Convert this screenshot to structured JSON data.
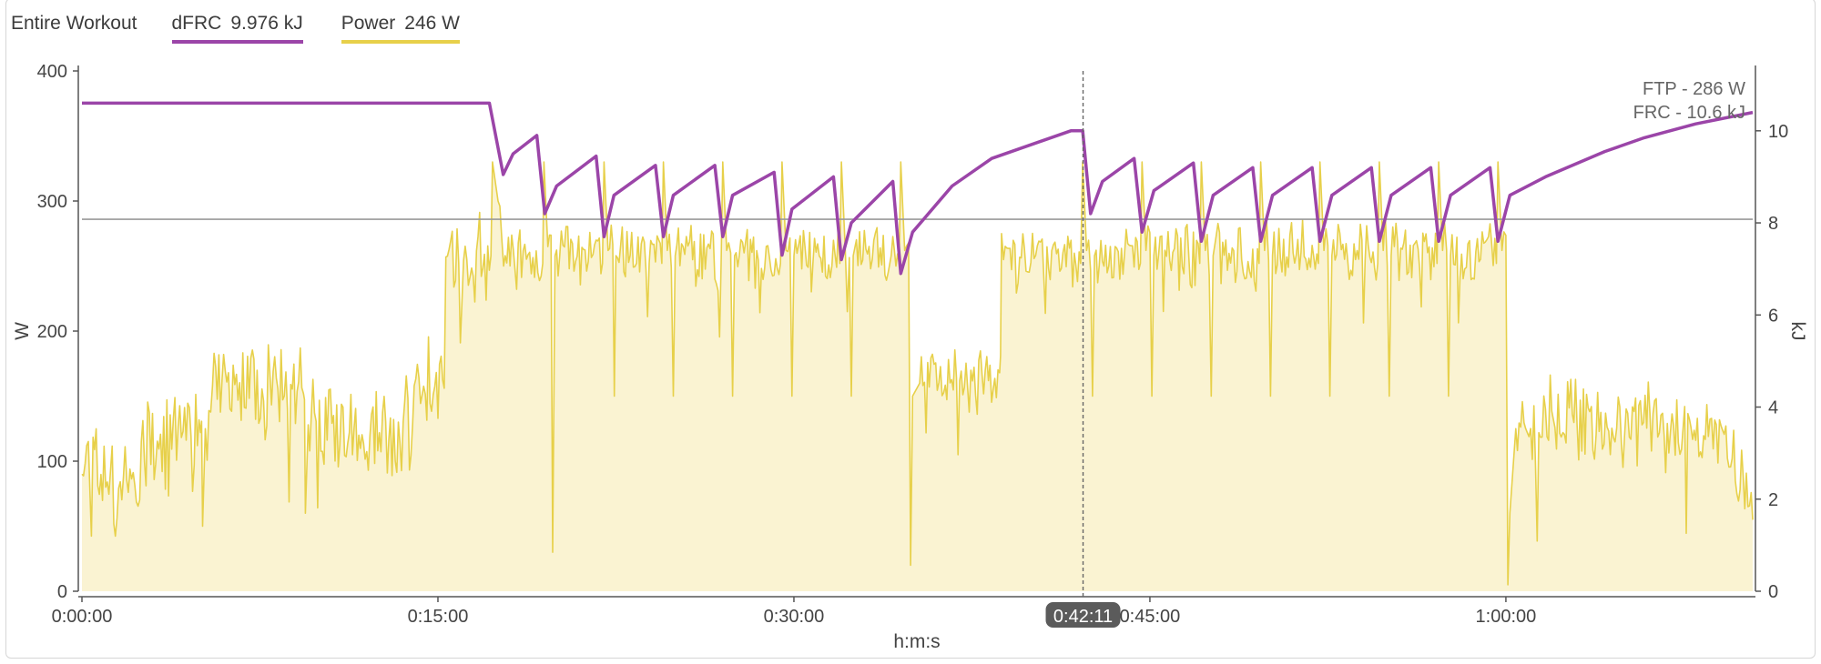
{
  "legend": {
    "scope_label": "Entire Workout",
    "items": [
      {
        "name": "dFRC",
        "value": "9.976 kJ",
        "color": "#9b45a8"
      },
      {
        "name": "Power",
        "value": "246 W",
        "color": "#e7d04a"
      }
    ]
  },
  "chart_data": {
    "type": "area",
    "xlabel": "h:m:s",
    "ylabel_left": "W",
    "ylabel_right": "kJ",
    "x_unit": "seconds",
    "xlim": [
      0,
      4224
    ],
    "ylim_left": [
      0,
      400
    ],
    "ylim_right": [
      0,
      11.3
    ],
    "x_ticks": [
      0,
      900,
      1800,
      2700,
      3600
    ],
    "x_tick_labels": [
      "0:00:00",
      "0:15:00",
      "0:30:00",
      "0:45:00",
      "1:00:00"
    ],
    "y_ticks_left": [
      0,
      100,
      200,
      300,
      400
    ],
    "y_ticks_right": [
      0,
      2,
      4,
      6,
      8,
      10
    ],
    "reference_lines": [
      {
        "label": "FTP - 286 W",
        "value": 286,
        "axis": "left"
      }
    ],
    "annotations": [
      "FTP - 286 W",
      "FRC - 10.6 kJ"
    ],
    "cursor": {
      "x": 2531,
      "label": "0:42:11"
    },
    "grid": false,
    "series": [
      {
        "name": "Power",
        "axis": "left",
        "color": "#e7d04a",
        "fill": "#faf3d2",
        "segments": [
          [
            0,
            90,
            70,
            0
          ],
          [
            60,
            80,
            65,
            7
          ],
          [
            150,
            115,
            70,
            12
          ],
          [
            300,
            122,
            55,
            18
          ],
          [
            305,
            50,
            0,
            0
          ],
          [
            312,
            125,
            48,
            15
          ],
          [
            330,
            158,
            62,
            17
          ],
          [
            560,
            152,
            52,
            19
          ],
          [
            565,
            60,
            0,
            0
          ],
          [
            572,
            128,
            60,
            20
          ],
          [
            700,
            120,
            62,
            25
          ],
          [
            800,
            130,
            66,
            31
          ],
          [
            840,
            158,
            62,
            37
          ],
          [
            920,
            257,
            62,
            43
          ],
          [
            1034,
            258,
            0,
            0
          ],
          [
            1038,
            330,
            0,
            0
          ],
          [
            1052,
            300,
            60,
            49
          ],
          [
            1066,
            250,
            0,
            0
          ],
          [
            1070,
            258,
            40,
            55
          ],
          [
            1165,
            252,
            0,
            0
          ],
          [
            1168,
            330,
            0,
            0
          ],
          [
            1178,
            265,
            48,
            61
          ],
          [
            1190,
            30,
            0,
            0
          ],
          [
            1196,
            258,
            40,
            67
          ],
          [
            1316,
            252,
            0,
            0
          ],
          [
            1320,
            330,
            0,
            0
          ],
          [
            1330,
            262,
            44,
            73
          ],
          [
            1346,
            150,
            0,
            0
          ],
          [
            1350,
            258,
            40,
            79
          ],
          [
            1466,
            252,
            0,
            0
          ],
          [
            1470,
            330,
            0,
            0
          ],
          [
            1480,
            262,
            44,
            85
          ],
          [
            1495,
            150,
            0,
            0
          ],
          [
            1500,
            258,
            40,
            91
          ],
          [
            1616,
            252,
            0,
            0
          ],
          [
            1620,
            330,
            0,
            0
          ],
          [
            1630,
            262,
            44,
            97
          ],
          [
            1645,
            150,
            0,
            0
          ],
          [
            1650,
            258,
            40,
            103
          ],
          [
            1766,
            252,
            0,
            0
          ],
          [
            1770,
            330,
            0,
            0
          ],
          [
            1780,
            262,
            44,
            109
          ],
          [
            1795,
            150,
            0,
            0
          ],
          [
            1800,
            258,
            40,
            115
          ],
          [
            1916,
            252,
            0,
            0
          ],
          [
            1920,
            330,
            0,
            0
          ],
          [
            1930,
            262,
            44,
            121
          ],
          [
            1945,
            150,
            0,
            0
          ],
          [
            1950,
            258,
            40,
            127
          ],
          [
            2066,
            252,
            0,
            0
          ],
          [
            2070,
            330,
            0,
            0
          ],
          [
            2080,
            262,
            44,
            133
          ],
          [
            2095,
            20,
            0,
            0
          ],
          [
            2100,
            150,
            0,
            0
          ],
          [
            2118,
            160,
            50,
            139
          ],
          [
            2320,
            168,
            40,
            145
          ],
          [
            2325,
            275,
            0,
            0
          ],
          [
            2330,
            255,
            40,
            151
          ],
          [
            2525,
            252,
            0,
            0
          ],
          [
            2530,
            330,
            0,
            0
          ],
          [
            2540,
            262,
            44,
            157
          ],
          [
            2555,
            150,
            0,
            0
          ],
          [
            2560,
            258,
            40,
            163
          ],
          [
            2676,
            252,
            0,
            0
          ],
          [
            2680,
            330,
            0,
            0
          ],
          [
            2690,
            262,
            44,
            169
          ],
          [
            2705,
            150,
            0,
            0
          ],
          [
            2710,
            258,
            40,
            175
          ],
          [
            2826,
            252,
            0,
            0
          ],
          [
            2830,
            330,
            0,
            0
          ],
          [
            2840,
            262,
            44,
            181
          ],
          [
            2855,
            150,
            0,
            0
          ],
          [
            2860,
            258,
            40,
            187
          ],
          [
            2976,
            252,
            0,
            0
          ],
          [
            2980,
            330,
            0,
            0
          ],
          [
            2990,
            262,
            44,
            193
          ],
          [
            3005,
            150,
            0,
            0
          ],
          [
            3010,
            258,
            40,
            199
          ],
          [
            3126,
            252,
            0,
            0
          ],
          [
            3130,
            330,
            0,
            0
          ],
          [
            3140,
            262,
            44,
            205
          ],
          [
            3155,
            150,
            0,
            0
          ],
          [
            3160,
            258,
            40,
            211
          ],
          [
            3276,
            252,
            0,
            0
          ],
          [
            3280,
            330,
            0,
            0
          ],
          [
            3290,
            262,
            44,
            217
          ],
          [
            3305,
            150,
            0,
            0
          ],
          [
            3310,
            258,
            40,
            223
          ],
          [
            3426,
            252,
            0,
            0
          ],
          [
            3430,
            330,
            0,
            0
          ],
          [
            3440,
            262,
            44,
            229
          ],
          [
            3455,
            150,
            0,
            0
          ],
          [
            3460,
            258,
            40,
            235
          ],
          [
            3576,
            252,
            0,
            0
          ],
          [
            3580,
            330,
            0,
            0
          ],
          [
            3590,
            262,
            44,
            241
          ],
          [
            3605,
            5,
            0,
            0
          ],
          [
            3610,
            60,
            0,
            0
          ],
          [
            3625,
            125,
            48,
            247
          ],
          [
            3700,
            140,
            50,
            253
          ],
          [
            3780,
            128,
            54,
            259
          ],
          [
            4000,
            120,
            50,
            265
          ],
          [
            4180,
            85,
            40,
            271
          ],
          [
            4224,
            55,
            0,
            0
          ]
        ]
      },
      {
        "name": "dFRC",
        "axis": "right",
        "color": "#9b45a8",
        "points": [
          [
            0,
            10.6
          ],
          [
            1030,
            10.6
          ],
          [
            1065,
            9.05
          ],
          [
            1090,
            9.5
          ],
          [
            1150,
            9.9
          ],
          [
            1170,
            8.2
          ],
          [
            1200,
            8.8
          ],
          [
            1300,
            9.45
          ],
          [
            1320,
            7.7
          ],
          [
            1345,
            8.6
          ],
          [
            1450,
            9.25
          ],
          [
            1470,
            7.7
          ],
          [
            1495,
            8.6
          ],
          [
            1600,
            9.25
          ],
          [
            1620,
            7.7
          ],
          [
            1645,
            8.6
          ],
          [
            1750,
            9.1
          ],
          [
            1770,
            7.3
          ],
          [
            1795,
            8.3
          ],
          [
            1900,
            9.0
          ],
          [
            1920,
            7.2
          ],
          [
            1945,
            8.0
          ],
          [
            2050,
            8.9
          ],
          [
            2070,
            6.9
          ],
          [
            2100,
            7.8
          ],
          [
            2200,
            8.8
          ],
          [
            2300,
            9.4
          ],
          [
            2500,
            10.0
          ],
          [
            2530,
            10.0
          ],
          [
            2550,
            8.2
          ],
          [
            2580,
            8.9
          ],
          [
            2660,
            9.4
          ],
          [
            2680,
            7.8
          ],
          [
            2710,
            8.7
          ],
          [
            2810,
            9.3
          ],
          [
            2830,
            7.6
          ],
          [
            2860,
            8.6
          ],
          [
            2960,
            9.2
          ],
          [
            2980,
            7.6
          ],
          [
            3010,
            8.6
          ],
          [
            3110,
            9.2
          ],
          [
            3130,
            7.6
          ],
          [
            3160,
            8.6
          ],
          [
            3260,
            9.2
          ],
          [
            3280,
            7.6
          ],
          [
            3310,
            8.6
          ],
          [
            3410,
            9.2
          ],
          [
            3430,
            7.6
          ],
          [
            3460,
            8.6
          ],
          [
            3560,
            9.2
          ],
          [
            3580,
            7.6
          ],
          [
            3610,
            8.6
          ],
          [
            3700,
            9.0
          ],
          [
            3850,
            9.55
          ],
          [
            3950,
            9.85
          ],
          [
            4080,
            10.15
          ],
          [
            4224,
            10.4
          ]
        ]
      }
    ]
  }
}
